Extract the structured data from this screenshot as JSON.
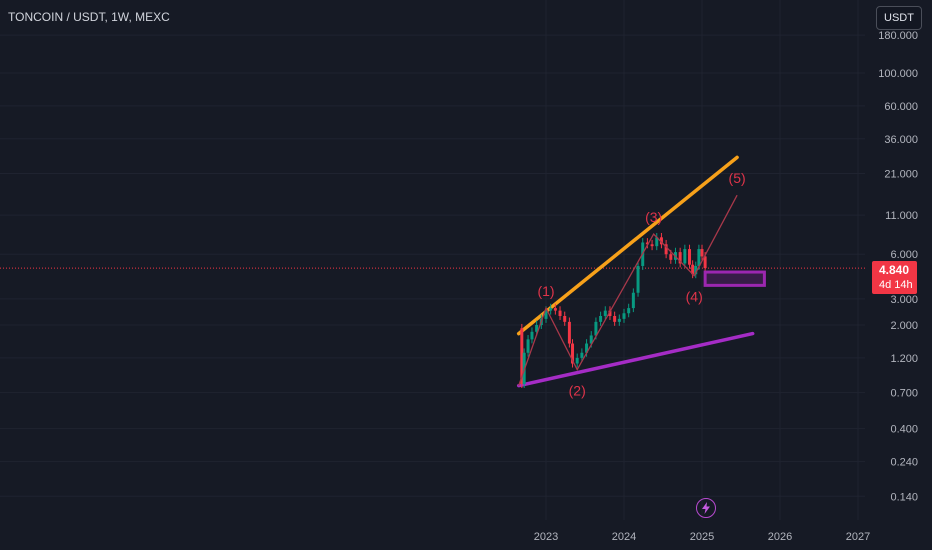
{
  "header": {
    "symbol": "TONCOIN / USDT, 1W, MEXC",
    "currency_button": "USDT"
  },
  "price_tag": {
    "price": "4.840",
    "countdown": "4d 14h"
  },
  "colors": {
    "background": "#161a25",
    "up_candle": "#089981",
    "down_candle": "#f23645",
    "upper_trendline": "#f7a11a",
    "lower_trendline": "#a52cc6",
    "wave_line": "#a8384a",
    "wave_label": "#e0344a",
    "target_box": "#9c27b0"
  },
  "chart_data": {
    "type": "line",
    "y_scale": "log",
    "y_ticks": [
      "180.000",
      "100.000",
      "60.000",
      "36.000",
      "21.000",
      "11.000",
      "6.000",
      "3.000",
      "2.000",
      "1.200",
      "0.700",
      "0.400",
      "0.240",
      "0.140"
    ],
    "y_tick_values": [
      180,
      100,
      60,
      36,
      21,
      11,
      6,
      3,
      2,
      1.2,
      0.7,
      0.4,
      0.24,
      0.14
    ],
    "x_ticks": [
      "2023",
      "2024",
      "2025",
      "2026",
      "2027"
    ],
    "x_tick_values": [
      2023,
      2024,
      2025,
      2026,
      2027
    ],
    "price_series": {
      "x": [
        2022.65,
        2022.69,
        2022.72,
        2022.77,
        2022.82,
        2022.88,
        2022.94,
        2023.0,
        2023.06,
        2023.12,
        2023.18,
        2023.24,
        2023.3,
        2023.34,
        2023.4,
        2023.46,
        2023.52,
        2023.58,
        2023.64,
        2023.7,
        2023.76,
        2023.82,
        2023.88,
        2023.94,
        2024.0,
        2024.06,
        2024.12,
        2024.18,
        2024.24,
        2024.3,
        2024.36,
        2024.42,
        2024.48,
        2024.54,
        2024.6,
        2024.66,
        2024.72,
        2024.78,
        2024.84,
        2024.88,
        2024.92,
        2024.96,
        2025.0,
        2025.04
      ],
      "y": [
        1.9,
        0.8,
        1.3,
        1.6,
        1.8,
        2.0,
        2.2,
        2.5,
        2.6,
        2.5,
        2.3,
        2.1,
        1.5,
        1.1,
        1.2,
        1.3,
        1.5,
        1.7,
        2.1,
        2.3,
        2.5,
        2.3,
        2.1,
        2.2,
        2.4,
        2.6,
        3.3,
        5.0,
        7.2,
        7.0,
        6.8,
        7.8,
        7.0,
        6.0,
        5.5,
        6.2,
        5.2,
        6.5,
        5.1,
        4.4,
        5.0,
        6.5,
        5.8,
        4.84
      ]
    },
    "upper_trendline": {
      "x": [
        2022.65,
        2025.45
      ],
      "y": [
        1.75,
        27
      ]
    },
    "lower_trendline": {
      "x": [
        2022.65,
        2025.65
      ],
      "y": [
        0.78,
        1.75
      ]
    },
    "wave_path": {
      "x": [
        2022.65,
        2023.0,
        2023.4,
        2024.38,
        2024.9,
        2025.45
      ],
      "y": [
        0.78,
        2.6,
        1.0,
        8.2,
        4.3,
        15.0
      ]
    },
    "wave_labels": [
      {
        "text": "(1)",
        "x": 2023.0,
        "y": 2.6,
        "pos": "above"
      },
      {
        "text": "(2)",
        "x": 2023.4,
        "y": 1.0,
        "pos": "below"
      },
      {
        "text": "(3)",
        "x": 2024.38,
        "y": 8.2,
        "pos": "above"
      },
      {
        "text": "(4)",
        "x": 2024.9,
        "y": 4.3,
        "pos": "below"
      },
      {
        "text": "(5)",
        "x": 2025.45,
        "y": 15.0,
        "pos": "above"
      }
    ],
    "target_zone": {
      "x": [
        2025.04,
        2025.8
      ],
      "y": [
        3.7,
        4.55
      ]
    },
    "current_price": 4.84
  }
}
